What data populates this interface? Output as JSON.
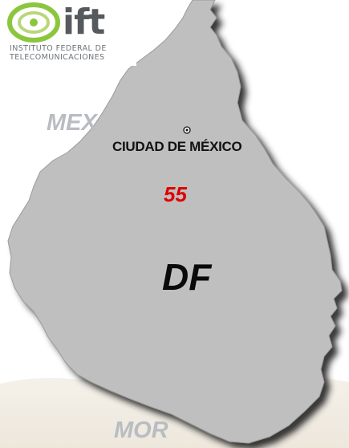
{
  "logo": {
    "acronym": "ift",
    "line1": "INSTITUTO FEDERAL DE",
    "line2": "TELECOMUNICACIONES",
    "colors": {
      "ring": "#8cc63f",
      "text": "#555a5e"
    }
  },
  "map": {
    "neighbors": {
      "north_west": "MEX",
      "south": "MOR"
    },
    "city": {
      "name": "CIUDAD DE MÉXICO",
      "marker_icon": "capital-dot-icon"
    },
    "area_code": "55",
    "entity": "DF",
    "colors": {
      "region_fill": "#bfbfbf",
      "shadow": "#2a2a2a",
      "neighbor_label": "#b8bdc2",
      "southern_land": "#f1ece4",
      "area_code": "#e00000"
    }
  }
}
